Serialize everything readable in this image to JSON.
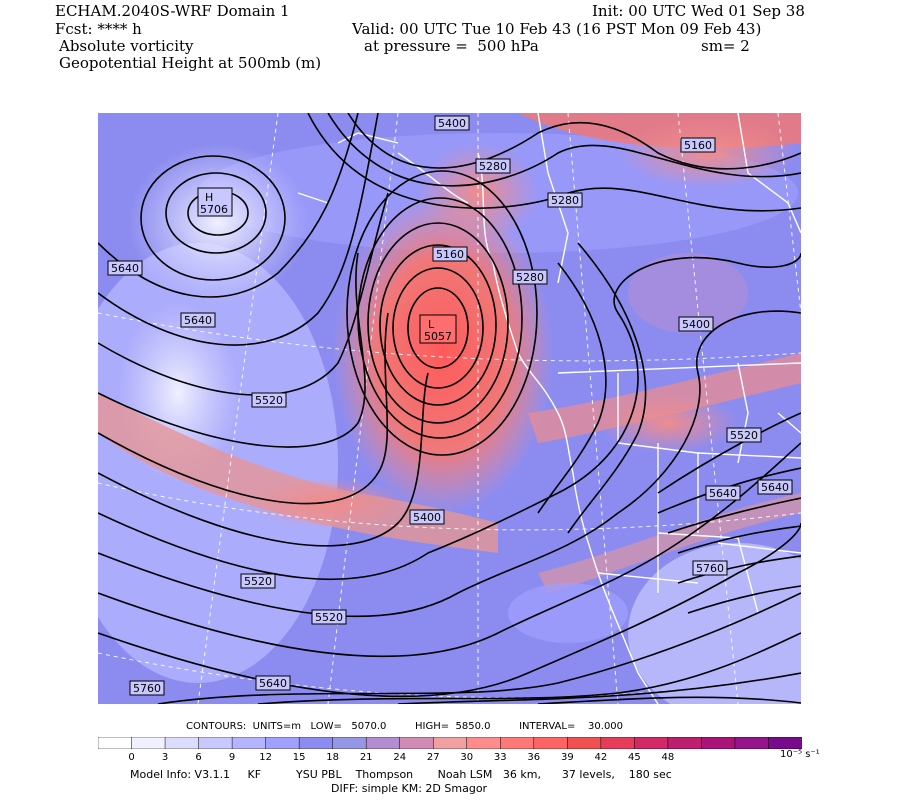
{
  "header": {
    "model_title": "ECHAM.2040S-WRF Domain 1",
    "init": "Init: 00 UTC Wed 01 Sep 38",
    "fcst": "Fcst: **** h",
    "valid": "Valid: 00 UTC Tue 10 Feb 43 (16 PST Mon 09 Feb 43)",
    "field1": "Absolute vorticity",
    "pressure": "at pressure =  500 hPa",
    "sm": "sm= 2",
    "field2": "Geopotential Height at 500mb (m)"
  },
  "map": {
    "centers": [
      {
        "letter": "H",
        "value": "5706"
      },
      {
        "letter": "L",
        "value": "5057"
      }
    ],
    "contour_labels": [
      "5400",
      "5280",
      "5160",
      "5280",
      "5640",
      "5160",
      "5280",
      "5640",
      "5400",
      "5520",
      "5520",
      "5400",
      "5640",
      "5640",
      "5520",
      "5760",
      "5520",
      "5640",
      "5760"
    ]
  },
  "footer": {
    "contours_line": "CONTOURS:  UNITS=m   LOW=   5070.0         HIGH=  5850.0         INTERVAL=    30.000",
    "colorbar_ticks": [
      "0",
      "3",
      "6",
      "9",
      "12",
      "15",
      "18",
      "21",
      "24",
      "27",
      "30",
      "33",
      "36",
      "39",
      "42",
      "45",
      "48"
    ],
    "colorbar_unit": "10⁻⁵ s⁻¹",
    "model_info": "Model Info: V3.1.1     KF          YSU PBL    Thompson       Noah LSM   36 km,      37 levels,    180 sec",
    "diff": "DIFF: simple KM: 2D Smagor"
  },
  "colors": {
    "colorbar": [
      "#ffffff",
      "#f0f0ff",
      "#dcdcff",
      "#c8c8ff",
      "#b4b4ff",
      "#a0a0ff",
      "#8c8cf0",
      "#9696e6",
      "#b48cd2",
      "#d28cb4",
      "#f0a0a0",
      "#ff8c8c",
      "#ff7878",
      "#ff6464",
      "#f05050",
      "#e63c5a",
      "#d22864",
      "#be1e6e",
      "#aa1478",
      "#96148c",
      "#780a8c"
    ]
  }
}
